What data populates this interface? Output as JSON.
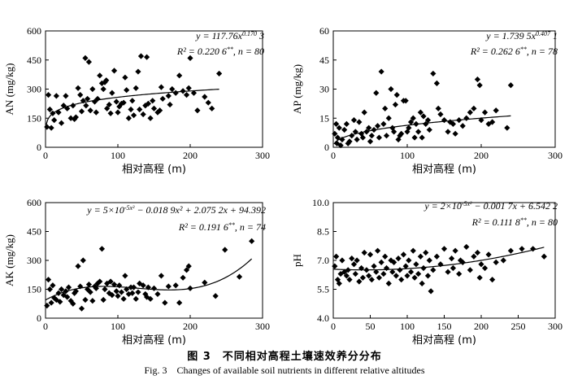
{
  "caption": {
    "zh": "图 3　不同相对高程土壤速效养分分布",
    "en": "Fig. 3　Changes of available soil nutrients in different relative altitudes"
  },
  "chart_data": [
    {
      "id": "AN",
      "type": "scatter",
      "xlabel": "相对高程 (m)",
      "ylabel": "AN (mg/kg)",
      "xlim": [
        0,
        300
      ],
      "xticks": [
        0,
        100,
        200,
        300
      ],
      "ylim": [
        0,
        600
      ],
      "yticks": [
        0,
        150,
        300,
        450,
        600
      ],
      "equation": [
        "y = 117.76x^0.170 3",
        "R² = 0.220 6**, n = 80"
      ],
      "fit": {
        "kind": "power",
        "a": 117.76,
        "b": 0.1703
      },
      "points": [
        [
          2,
          105
        ],
        [
          4,
          270
        ],
        [
          6,
          195
        ],
        [
          8,
          100
        ],
        [
          10,
          175
        ],
        [
          12,
          140
        ],
        [
          15,
          265
        ],
        [
          18,
          180
        ],
        [
          22,
          125
        ],
        [
          25,
          215
        ],
        [
          28,
          265
        ],
        [
          30,
          200
        ],
        [
          35,
          150
        ],
        [
          38,
          215
        ],
        [
          40,
          145
        ],
        [
          42,
          155
        ],
        [
          45,
          305
        ],
        [
          48,
          270
        ],
        [
          50,
          185
        ],
        [
          52,
          240
        ],
        [
          55,
          460
        ],
        [
          56,
          215
        ],
        [
          58,
          250
        ],
        [
          60,
          440
        ],
        [
          62,
          190
        ],
        [
          65,
          300
        ],
        [
          68,
          235
        ],
        [
          70,
          180
        ],
        [
          72,
          250
        ],
        [
          75,
          370
        ],
        [
          78,
          330
        ],
        [
          80,
          300
        ],
        [
          82,
          335
        ],
        [
          84,
          345
        ],
        [
          85,
          200
        ],
        [
          88,
          220
        ],
        [
          90,
          175
        ],
        [
          92,
          280
        ],
        [
          95,
          395
        ],
        [
          98,
          235
        ],
        [
          100,
          180
        ],
        [
          102,
          210
        ],
        [
          105,
          225
        ],
        [
          108,
          230
        ],
        [
          110,
          360
        ],
        [
          112,
          295
        ],
        [
          115,
          150
        ],
        [
          118,
          195
        ],
        [
          120,
          240
        ],
        [
          122,
          165
        ],
        [
          125,
          305
        ],
        [
          128,
          390
        ],
        [
          130,
          195
        ],
        [
          132,
          470
        ],
        [
          135,
          170
        ],
        [
          138,
          215
        ],
        [
          140,
          465
        ],
        [
          142,
          225
        ],
        [
          145,
          150
        ],
        [
          148,
          240
        ],
        [
          150,
          200
        ],
        [
          155,
          180
        ],
        [
          158,
          190
        ],
        [
          160,
          310
        ],
        [
          162,
          250
        ],
        [
          170,
          265
        ],
        [
          172,
          220
        ],
        [
          175,
          300
        ],
        [
          180,
          280
        ],
        [
          185,
          370
        ],
        [
          190,
          290
        ],
        [
          195,
          270
        ],
        [
          198,
          305
        ],
        [
          200,
          460
        ],
        [
          205,
          280
        ],
        [
          210,
          190
        ],
        [
          220,
          260
        ],
        [
          225,
          230
        ],
        [
          230,
          200
        ],
        [
          240,
          380
        ]
      ]
    },
    {
      "id": "AP",
      "type": "scatter",
      "xlabel": "相对高程 (m)",
      "ylabel": "AP (mg/kg)",
      "xlim": [
        0,
        300
      ],
      "xticks": [
        0,
        100,
        200,
        300
      ],
      "ylim": [
        0,
        60
      ],
      "yticks": [
        0,
        15,
        30,
        45,
        60
      ],
      "equation": [
        "y = 1.739 5x^0.407 1",
        "R² = 0.262 6**, n = 78"
      ],
      "fit": {
        "kind": "power",
        "a": 1.7395,
        "b": 0.4071
      },
      "points": [
        [
          2,
          7
        ],
        [
          4,
          12
        ],
        [
          5,
          2
        ],
        [
          6,
          5
        ],
        [
          8,
          10
        ],
        [
          10,
          1
        ],
        [
          12,
          4
        ],
        [
          15,
          9
        ],
        [
          18,
          12
        ],
        [
          20,
          2
        ],
        [
          22,
          3
        ],
        [
          25,
          6
        ],
        [
          28,
          14
        ],
        [
          30,
          8
        ],
        [
          32,
          4
        ],
        [
          35,
          13
        ],
        [
          38,
          7
        ],
        [
          40,
          5
        ],
        [
          42,
          18
        ],
        [
          45,
          8
        ],
        [
          48,
          10
        ],
        [
          50,
          3
        ],
        [
          52,
          6
        ],
        [
          55,
          9
        ],
        [
          58,
          28
        ],
        [
          60,
          11
        ],
        [
          62,
          5
        ],
        [
          65,
          39
        ],
        [
          68,
          12
        ],
        [
          70,
          20
        ],
        [
          72,
          6
        ],
        [
          75,
          15
        ],
        [
          78,
          30
        ],
        [
          80,
          10
        ],
        [
          82,
          8
        ],
        [
          84,
          22
        ],
        [
          86,
          27
        ],
        [
          88,
          4
        ],
        [
          90,
          6
        ],
        [
          92,
          7
        ],
        [
          95,
          24
        ],
        [
          98,
          24
        ],
        [
          100,
          8
        ],
        [
          102,
          10
        ],
        [
          105,
          13
        ],
        [
          108,
          15
        ],
        [
          110,
          5
        ],
        [
          112,
          12
        ],
        [
          115,
          8
        ],
        [
          118,
          18
        ],
        [
          120,
          5
        ],
        [
          122,
          16
        ],
        [
          125,
          12
        ],
        [
          128,
          14
        ],
        [
          130,
          9
        ],
        [
          135,
          38
        ],
        [
          140,
          33
        ],
        [
          142,
          20
        ],
        [
          145,
          17
        ],
        [
          150,
          14
        ],
        [
          155,
          8
        ],
        [
          158,
          13
        ],
        [
          162,
          12
        ],
        [
          165,
          7
        ],
        [
          170,
          14
        ],
        [
          175,
          11
        ],
        [
          180,
          15
        ],
        [
          185,
          18
        ],
        [
          190,
          20
        ],
        [
          195,
          35
        ],
        [
          198,
          32
        ],
        [
          200,
          14
        ],
        [
          205,
          18
        ],
        [
          210,
          12
        ],
        [
          215,
          13
        ],
        [
          220,
          19
        ],
        [
          235,
          10
        ],
        [
          240,
          32
        ]
      ]
    },
    {
      "id": "AK",
      "type": "scatter",
      "xlabel": "相对高程 (m)",
      "ylabel": "AK (mg/kg)",
      "xlim": [
        0,
        300
      ],
      "xticks": [
        0,
        100,
        200,
        300
      ],
      "ylim": [
        0,
        600
      ],
      "yticks": [
        0,
        150,
        300,
        450,
        600
      ],
      "equation": [
        "y = 5×10^-5x³ − 0.018 9x² + 2.075 2x + 94.392",
        "R² = 0.191 6**, n = 74"
      ],
      "fit": {
        "kind": "poly",
        "coef": [
          94.392,
          2.0752,
          -0.0189,
          5e-05
        ]
      },
      "points": [
        [
          2,
          65
        ],
        [
          4,
          200
        ],
        [
          6,
          150
        ],
        [
          8,
          80
        ],
        [
          10,
          170
        ],
        [
          12,
          105
        ],
        [
          15,
          95
        ],
        [
          18,
          130
        ],
        [
          20,
          85
        ],
        [
          22,
          150
        ],
        [
          25,
          120
        ],
        [
          28,
          140
        ],
        [
          30,
          110
        ],
        [
          32,
          160
        ],
        [
          35,
          90
        ],
        [
          38,
          75
        ],
        [
          40,
          130
        ],
        [
          42,
          140
        ],
        [
          45,
          270
        ],
        [
          48,
          165
        ],
        [
          50,
          50
        ],
        [
          52,
          300
        ],
        [
          55,
          95
        ],
        [
          58,
          150
        ],
        [
          60,
          175
        ],
        [
          62,
          135
        ],
        [
          65,
          90
        ],
        [
          68,
          165
        ],
        [
          70,
          155
        ],
        [
          72,
          180
        ],
        [
          75,
          190
        ],
        [
          78,
          360
        ],
        [
          80,
          95
        ],
        [
          82,
          150
        ],
        [
          85,
          180
        ],
        [
          88,
          130
        ],
        [
          90,
          190
        ],
        [
          92,
          120
        ],
        [
          95,
          175
        ],
        [
          98,
          140
        ],
        [
          100,
          115
        ],
        [
          102,
          170
        ],
        [
          105,
          135
        ],
        [
          108,
          100
        ],
        [
          110,
          220
        ],
        [
          112,
          150
        ],
        [
          115,
          125
        ],
        [
          118,
          160
        ],
        [
          120,
          130
        ],
        [
          122,
          160
        ],
        [
          125,
          100
        ],
        [
          128,
          135
        ],
        [
          130,
          180
        ],
        [
          135,
          170
        ],
        [
          138,
          125
        ],
        [
          140,
          110
        ],
        [
          142,
          160
        ],
        [
          145,
          100
        ],
        [
          150,
          155
        ],
        [
          155,
          125
        ],
        [
          160,
          220
        ],
        [
          165,
          80
        ],
        [
          170,
          165
        ],
        [
          180,
          170
        ],
        [
          185,
          80
        ],
        [
          190,
          210
        ],
        [
          195,
          250
        ],
        [
          198,
          270
        ],
        [
          200,
          155
        ],
        [
          220,
          185
        ],
        [
          235,
          115
        ],
        [
          248,
          355
        ],
        [
          268,
          215
        ],
        [
          285,
          400
        ]
      ]
    },
    {
      "id": "pH",
      "type": "scatter",
      "xlabel": "相对高程 (m)",
      "ylabel": "pH",
      "xlim": [
        0,
        300
      ],
      "xticks": [
        0,
        50,
        100,
        150,
        200,
        250,
        300
      ],
      "ylim": [
        4.0,
        10.0
      ],
      "yticks": [
        4.0,
        5.5,
        7.0,
        8.5,
        10.0
      ],
      "equation": [
        "y = 2×10^-5x² − 0.001 7x + 6.542 2",
        "R² = 0.111 8**, n = 80"
      ],
      "fit": {
        "kind": "poly",
        "coef": [
          6.5422,
          -0.0017,
          2e-05
        ]
      },
      "points": [
        [
          2,
          6.7
        ],
        [
          4,
          7.2
        ],
        [
          6,
          6.0
        ],
        [
          8,
          5.8
        ],
        [
          10,
          6.3
        ],
        [
          12,
          7.0
        ],
        [
          15,
          6.4
        ],
        [
          18,
          6.2
        ],
        [
          20,
          6.5
        ],
        [
          22,
          6.0
        ],
        [
          25,
          7.1
        ],
        [
          28,
          6.8
        ],
        [
          30,
          6.3
        ],
        [
          32,
          7.0
        ],
        [
          35,
          5.9
        ],
        [
          38,
          6.6
        ],
        [
          40,
          6.1
        ],
        [
          42,
          7.4
        ],
        [
          45,
          6.5
        ],
        [
          48,
          6.2
        ],
        [
          50,
          7.3
        ],
        [
          52,
          6.0
        ],
        [
          55,
          6.7
        ],
        [
          58,
          6.4
        ],
        [
          60,
          7.5
        ],
        [
          62,
          6.1
        ],
        [
          65,
          6.9
        ],
        [
          68,
          6.3
        ],
        [
          70,
          7.2
        ],
        [
          72,
          6.6
        ],
        [
          75,
          5.8
        ],
        [
          78,
          7.0
        ],
        [
          80,
          6.4
        ],
        [
          82,
          6.9
        ],
        [
          85,
          6.2
        ],
        [
          88,
          7.1
        ],
        [
          90,
          6.5
        ],
        [
          92,
          6.0
        ],
        [
          95,
          7.3
        ],
        [
          98,
          6.7
        ],
        [
          100,
          6.2
        ],
        [
          102,
          7.0
        ],
        [
          105,
          6.4
        ],
        [
          108,
          7.5
        ],
        [
          110,
          6.1
        ],
        [
          112,
          6.8
        ],
        [
          115,
          6.3
        ],
        [
          118,
          7.2
        ],
        [
          120,
          5.8
        ],
        [
          122,
          6.6
        ],
        [
          125,
          7.4
        ],
        [
          128,
          6.2
        ],
        [
          130,
          7.0
        ],
        [
          132,
          5.4
        ],
        [
          135,
          6.5
        ],
        [
          140,
          7.2
        ],
        [
          145,
          6.8
        ],
        [
          150,
          7.6
        ],
        [
          155,
          6.4
        ],
        [
          160,
          7.1
        ],
        [
          162,
          6.6
        ],
        [
          165,
          7.5
        ],
        [
          170,
          6.3
        ],
        [
          172,
          7.0
        ],
        [
          175,
          6.9
        ],
        [
          180,
          7.7
        ],
        [
          185,
          6.5
        ],
        [
          190,
          7.2
        ],
        [
          195,
          7.4
        ],
        [
          198,
          6.1
        ],
        [
          200,
          6.8
        ],
        [
          205,
          6.6
        ],
        [
          210,
          7.3
        ],
        [
          215,
          6.0
        ],
        [
          220,
          6.9
        ],
        [
          230,
          7.0
        ],
        [
          240,
          7.5
        ],
        [
          255,
          7.6
        ],
        [
          270,
          7.6
        ],
        [
          285,
          7.2
        ]
      ]
    }
  ]
}
